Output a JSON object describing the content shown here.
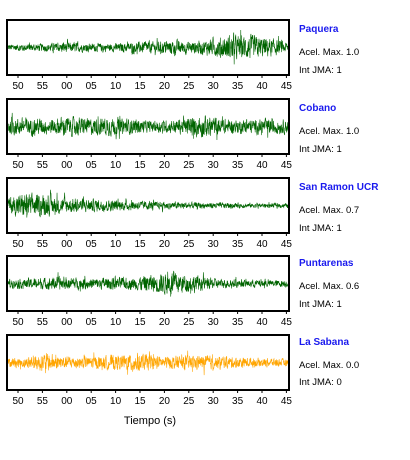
{
  "chart_data": {
    "type": "line",
    "xlabel": "Tiempo (s)",
    "x_tick_labels": [
      "50",
      "55",
      "00",
      "05",
      "10",
      "15",
      "20",
      "25",
      "30",
      "35",
      "40",
      "45"
    ],
    "panels": [
      {
        "station": "Paquera",
        "acel_label": "Acel. Max. 1.0",
        "jma_label": "Int JMA: 1",
        "color": "#006400",
        "envelope": [
          0.28,
          0.28,
          0.3,
          0.3,
          0.32,
          0.34,
          0.36,
          0.45,
          0.4,
          0.35,
          0.32,
          0.34,
          0.35,
          0.32,
          0.38,
          0.4,
          0.45,
          0.5,
          0.45,
          0.55,
          0.6,
          0.55,
          0.5,
          0.55,
          0.6,
          0.7,
          0.85,
          1.0,
          0.95,
          1.0,
          0.9,
          0.85,
          0.7,
          0.55,
          0.4
        ]
      },
      {
        "station": "Cobano",
        "acel_label": "Acel. Max. 1.0",
        "jma_label": "Int JMA: 1",
        "color": "#006400",
        "envelope": [
          0.65,
          0.7,
          0.75,
          0.7,
          0.65,
          0.6,
          0.7,
          0.8,
          0.75,
          0.7,
          0.65,
          0.7,
          0.75,
          0.7,
          0.65,
          0.6,
          0.55,
          0.45,
          0.45,
          0.5,
          0.55,
          0.6,
          0.7,
          0.85,
          0.9,
          0.8,
          0.65,
          0.55,
          0.55,
          0.6,
          0.55,
          0.6,
          0.65,
          0.6,
          0.55
        ]
      },
      {
        "station": "San Ramon UCR",
        "acel_label": "Acel. Max. 0.7",
        "jma_label": "Int JMA: 1",
        "color": "#006400",
        "envelope": [
          0.7,
          0.8,
          1.0,
          0.9,
          0.85,
          0.8,
          0.7,
          0.6,
          0.6,
          0.55,
          0.5,
          0.5,
          0.45,
          0.45,
          0.4,
          0.4,
          0.35,
          0.35,
          0.3,
          0.3,
          0.3,
          0.28,
          0.28,
          0.25,
          0.25,
          0.25,
          0.22,
          0.22,
          0.2,
          0.2,
          0.2,
          0.2,
          0.18,
          0.18,
          0.18
        ]
      },
      {
        "station": "Puntarenas",
        "acel_label": "Acel. Max. 0.6",
        "jma_label": "Int JMA: 1",
        "color": "#006400",
        "envelope": [
          0.35,
          0.35,
          0.4,
          0.45,
          0.45,
          0.45,
          0.55,
          0.5,
          0.45,
          0.45,
          0.45,
          0.45,
          0.5,
          0.5,
          0.45,
          0.5,
          0.55,
          0.7,
          0.75,
          0.85,
          1.0,
          0.8,
          0.7,
          0.65,
          0.5,
          0.4,
          0.35,
          0.35,
          0.3,
          0.3,
          0.3,
          0.3,
          0.28,
          0.28,
          0.28
        ]
      },
      {
        "station": "La Sabana",
        "acel_label": "Acel. Max. 0.0",
        "jma_label": "Int JMA: 0",
        "color": "#FFA500",
        "envelope": [
          0.35,
          0.4,
          0.45,
          0.55,
          0.65,
          0.75,
          0.6,
          0.5,
          0.5,
          0.5,
          0.5,
          0.5,
          0.55,
          0.6,
          0.6,
          0.75,
          0.8,
          0.6,
          0.55,
          0.5,
          0.5,
          0.55,
          0.55,
          0.55,
          0.55,
          0.5,
          0.5,
          0.45,
          0.45,
          0.4,
          0.38,
          0.35,
          0.35,
          0.3,
          0.3
        ]
      }
    ]
  }
}
